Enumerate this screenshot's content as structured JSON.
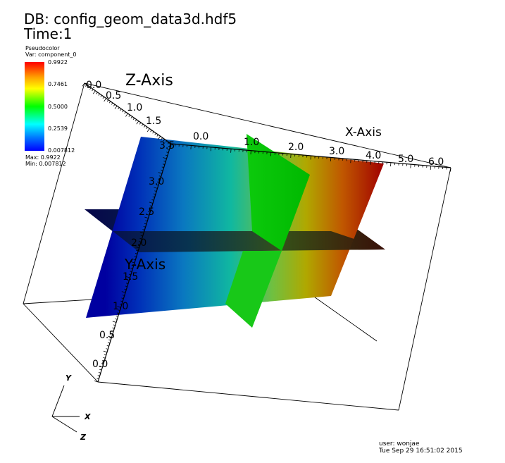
{
  "header": {
    "db_line": "DB: config_geom_data3d.hdf5",
    "time_line": "Time:1"
  },
  "legend": {
    "plot_type": "Pseudocolor",
    "variable": "Var: component_0",
    "ticks": [
      "0.9922",
      "0.7461",
      "0.5000",
      "0.2539",
      "0.007812"
    ],
    "max_label": "Max:  0.9922",
    "min_label": "Min:  0.007812",
    "colors": [
      "#ff0000",
      "#ffa000",
      "#ffff00",
      "#00ff00",
      "#00ffff",
      "#0078ff",
      "#0000ff"
    ]
  },
  "axes": {
    "z_title": "Z-Axis",
    "x_title": "X-Axis",
    "y_title": "Y-Axis",
    "z_ticks": [
      "0.0",
      "0.5",
      "1.0",
      "1.5"
    ],
    "x_ticks": [
      "0.0",
      "1.0",
      "2.0",
      "3.0",
      "4.0",
      "5.0",
      "6.0"
    ],
    "y_ticks": [
      "0.0",
      "0.5",
      "1.0",
      "1.5",
      "2.0",
      "2.5",
      "3.0",
      "3.5"
    ]
  },
  "triad": {
    "x_label": "X",
    "y_label": "Y",
    "z_label": "Z"
  },
  "footer": {
    "user": "user: wonjae",
    "timestamp": "Tue Sep 29 16:51:02 2015"
  }
}
